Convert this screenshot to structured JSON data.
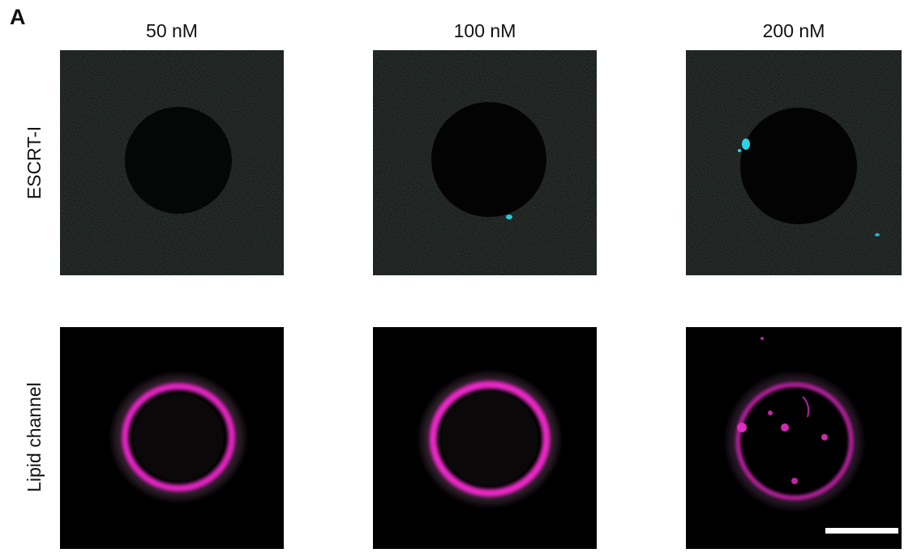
{
  "panel_label": "A",
  "columns": [
    "50 nM",
    "100 nM",
    "200 nM"
  ],
  "rows": [
    "ESCRT-I",
    "Lipid channel"
  ]
}
